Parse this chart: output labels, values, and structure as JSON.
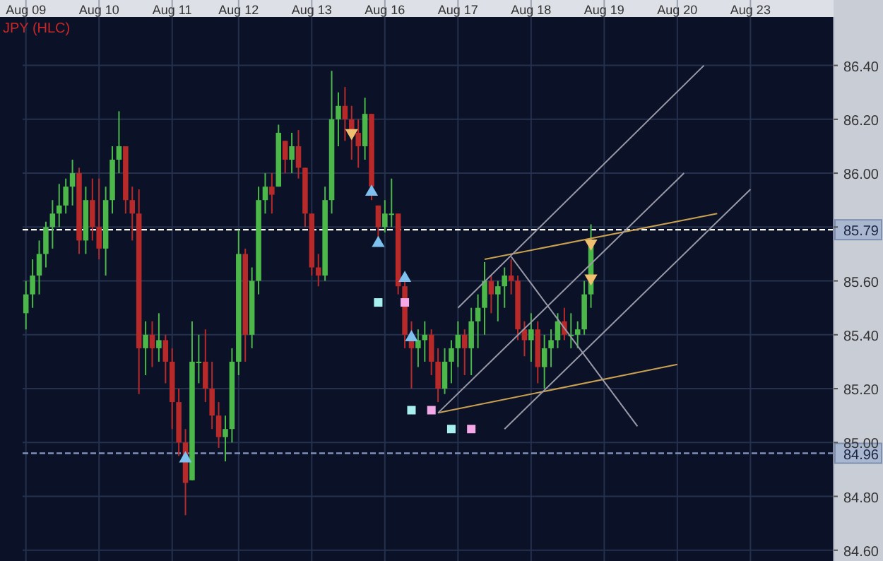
{
  "chart_data": {
    "type": "candlestick",
    "title": "JPY (HLC)",
    "categories": [
      "Aug 09",
      null,
      null,
      null,
      null,
      null,
      null,
      null,
      null,
      null,
      null,
      "Aug 10",
      null,
      null,
      null,
      null,
      null,
      null,
      null,
      null,
      null,
      null,
      "Aug 11",
      null,
      null,
      null,
      null,
      null,
      null,
      null,
      null,
      null,
      "Aug 12",
      null,
      null,
      null,
      null,
      null,
      null,
      null,
      null,
      null,
      null,
      "Aug 13",
      null,
      null,
      null,
      null,
      null,
      null,
      null,
      null,
      null,
      null,
      "Aug 16",
      null,
      null,
      null,
      null,
      null,
      null,
      null,
      null,
      null,
      null,
      "Aug 17",
      null,
      null,
      null,
      null,
      null,
      null,
      null,
      null,
      null,
      null,
      "Aug 18",
      null,
      null,
      null,
      null,
      null,
      null,
      null,
      null,
      null,
      null,
      "Aug 19",
      null,
      null,
      null,
      null,
      null,
      null,
      null,
      null,
      null,
      null,
      "Aug 20",
      null,
      null,
      null,
      null,
      null,
      null,
      null,
      null,
      null,
      null,
      "Aug 23",
      null,
      null,
      null,
      null,
      null,
      null,
      null,
      null,
      null,
      null,
      null,
      null
    ],
    "ohlc": [
      [
        85.48,
        85.6,
        85.42,
        85.55
      ],
      [
        85.55,
        85.68,
        85.5,
        85.62
      ],
      [
        85.62,
        85.75,
        85.55,
        85.7
      ],
      [
        85.7,
        85.82,
        85.65,
        85.8
      ],
      [
        85.8,
        85.9,
        85.72,
        85.85
      ],
      [
        85.85,
        85.96,
        85.8,
        85.88
      ],
      [
        85.88,
        85.98,
        85.85,
        85.95
      ],
      [
        85.95,
        86.05,
        85.88,
        86.0
      ],
      [
        86.0,
        86.02,
        85.7,
        85.75
      ],
      [
        85.75,
        85.95,
        85.7,
        85.9
      ],
      [
        85.9,
        85.98,
        85.75,
        85.8
      ],
      [
        85.8,
        85.98,
        85.68,
        85.72
      ],
      [
        85.72,
        85.95,
        85.62,
        85.9
      ],
      [
        85.9,
        86.1,
        85.85,
        86.05
      ],
      [
        86.05,
        86.23,
        86.0,
        86.1
      ],
      [
        86.1,
        86.1,
        85.85,
        85.9
      ],
      [
        85.9,
        85.95,
        85.75,
        85.85
      ],
      [
        85.85,
        85.94,
        85.18,
        85.35
      ],
      [
        85.35,
        85.45,
        85.25,
        85.4
      ],
      [
        85.4,
        85.45,
        85.28,
        85.35
      ],
      [
        85.35,
        85.48,
        85.3,
        85.38
      ],
      [
        85.38,
        85.4,
        85.22,
        85.3
      ],
      [
        85.3,
        85.35,
        85.05,
        85.15
      ],
      [
        85.15,
        85.2,
        84.95,
        85.0
      ],
      [
        85.0,
        85.05,
        84.73,
        84.85
      ],
      [
        84.86,
        85.45,
        84.86,
        85.3
      ],
      [
        85.3,
        85.4,
        85.22,
        85.3
      ],
      [
        85.3,
        85.42,
        85.15,
        85.2
      ],
      [
        85.2,
        85.3,
        85.05,
        85.1
      ],
      [
        85.1,
        85.15,
        84.98,
        85.02
      ],
      [
        85.02,
        85.1,
        84.93,
        85.05
      ],
      [
        85.05,
        85.35,
        85.0,
        85.3
      ],
      [
        85.3,
        85.79,
        85.25,
        85.7
      ],
      [
        85.7,
        85.72,
        85.3,
        85.4
      ],
      [
        85.4,
        85.65,
        85.35,
        85.6
      ],
      [
        85.6,
        85.95,
        85.55,
        85.9
      ],
      [
        85.9,
        86.0,
        85.85,
        85.95
      ],
      [
        85.95,
        86.0,
        85.85,
        85.92
      ],
      [
        85.95,
        86.18,
        85.95,
        86.15
      ],
      [
        86.12,
        86.12,
        86.0,
        86.05
      ],
      [
        86.05,
        86.15,
        86.0,
        86.1
      ],
      [
        86.1,
        86.16,
        85.98,
        86.02
      ],
      [
        86.02,
        86.02,
        85.8,
        85.85
      ],
      [
        85.85,
        85.85,
        85.62,
        85.65
      ],
      [
        85.65,
        85.7,
        85.58,
        85.62
      ],
      [
        85.62,
        85.95,
        85.6,
        85.9
      ],
      [
        85.9,
        86.38,
        85.85,
        86.2
      ],
      [
        86.2,
        86.3,
        86.1,
        86.25
      ],
      [
        86.25,
        86.32,
        86.12,
        86.2
      ],
      [
        86.2,
        86.25,
        86.05,
        86.15
      ],
      [
        86.15,
        86.2,
        86.02,
        86.1
      ],
      [
        86.1,
        86.28,
        86.05,
        86.22
      ],
      [
        86.22,
        86.22,
        85.9,
        85.95
      ],
      [
        85.88,
        85.88,
        85.75,
        85.8
      ],
      [
        85.8,
        85.9,
        85.78,
        85.85
      ],
      [
        85.85,
        85.98,
        85.8,
        85.85
      ],
      [
        85.85,
        85.85,
        85.55,
        85.58
      ],
      [
        85.58,
        85.6,
        85.35,
        85.4
      ],
      [
        85.4,
        85.45,
        85.2,
        85.35
      ],
      [
        85.35,
        85.42,
        85.28,
        85.38
      ],
      [
        85.38,
        85.45,
        85.3,
        85.4
      ],
      [
        85.4,
        85.42,
        85.25,
        85.3
      ],
      [
        85.3,
        85.35,
        85.15,
        85.2
      ],
      [
        85.2,
        85.35,
        85.18,
        85.3
      ],
      [
        85.3,
        85.38,
        85.22,
        85.35
      ],
      [
        85.35,
        85.45,
        85.28,
        85.4
      ],
      [
        85.4,
        85.42,
        85.25,
        85.35
      ],
      [
        85.35,
        85.5,
        85.25,
        85.45
      ],
      [
        85.45,
        85.55,
        85.35,
        85.5
      ],
      [
        85.5,
        85.67,
        85.4,
        85.6
      ],
      [
        85.6,
        85.62,
        85.48,
        85.55
      ],
      [
        85.55,
        85.6,
        85.45,
        85.58
      ],
      [
        85.58,
        85.65,
        85.5,
        85.62
      ],
      [
        85.62,
        85.68,
        85.55,
        85.6
      ],
      [
        85.6,
        85.62,
        85.38,
        85.42
      ],
      [
        85.42,
        85.45,
        85.32,
        85.38
      ],
      [
        85.38,
        85.48,
        85.3,
        85.42
      ],
      [
        85.42,
        85.45,
        85.22,
        85.28
      ],
      [
        85.28,
        85.4,
        85.2,
        85.35
      ],
      [
        85.35,
        85.42,
        85.28,
        85.38
      ],
      [
        85.38,
        85.48,
        85.35,
        85.45
      ],
      [
        85.45,
        85.5,
        85.38,
        85.4
      ],
      [
        85.4,
        85.48,
        85.35,
        85.4
      ],
      [
        85.4,
        85.45,
        85.35,
        85.42
      ],
      [
        85.42,
        85.6,
        85.4,
        85.55
      ],
      [
        85.55,
        85.81,
        85.5,
        85.75
      ],
      null,
      null,
      null,
      null,
      null,
      null,
      null,
      null,
      null,
      null,
      null,
      null,
      null,
      null,
      null,
      null,
      null,
      null,
      null,
      null,
      null,
      null,
      null,
      null,
      null,
      null,
      null,
      null,
      null,
      null,
      null,
      null,
      null,
      null,
      null,
      null
    ],
    "colors": [
      "#4cb84a",
      "#4cb84a",
      "#4cb84a",
      "#4cb84a",
      "#4cb84a",
      "#4cb84a",
      "#4cb84a",
      "#4cb84a",
      "#b82a2a",
      "#4cb84a",
      "#b82a2a",
      "#b82a2a",
      "#4cb84a",
      "#4cb84a",
      "#4cb84a",
      "#b82a2a",
      "#b82a2a",
      "#b82a2a",
      "#4cb84a",
      "#b82a2a",
      "#4cb84a",
      "#b82a2a",
      "#b82a2a",
      "#b82a2a",
      "#b82a2a",
      "#4cb84a",
      "#4cb84a",
      "#b82a2a",
      "#b82a2a",
      "#b82a2a",
      "#4cb84a",
      "#4cb84a",
      "#4cb84a",
      "#b82a2a",
      "#4cb84a",
      "#4cb84a",
      "#4cb84a",
      "#b82a2a",
      "#4cb84a",
      "#b82a2a",
      "#4cb84a",
      "#b82a2a",
      "#b82a2a",
      "#b82a2a",
      "#b82a2a",
      "#4cb84a",
      "#4cb84a",
      "#4cb84a",
      "#b82a2a",
      "#b82a2a",
      "#b82a2a",
      "#4cb84a",
      "#b82a2a",
      "#b82a2a",
      "#4cb84a",
      "#4cb84a",
      "#b82a2a",
      "#b82a2a",
      "#b82a2a",
      "#4cb84a",
      "#4cb84a",
      "#b82a2a",
      "#b82a2a",
      "#4cb84a",
      "#4cb84a",
      "#4cb84a",
      "#b82a2a",
      "#4cb84a",
      "#4cb84a",
      "#4cb84a",
      "#b82a2a",
      "#4cb84a",
      "#4cb84a",
      "#b82a2a",
      "#b82a2a",
      "#b82a2a",
      "#4cb84a",
      "#b82a2a",
      "#4cb84a",
      "#4cb84a",
      "#4cb84a",
      "#b82a2a",
      "#4cb84a",
      "#4cb84a",
      "#4cb84a",
      "#4cb84a",
      null,
      null,
      null,
      null,
      null,
      null,
      null,
      null,
      null,
      null,
      null,
      null,
      null,
      null,
      null,
      null,
      null,
      null,
      null,
      null,
      null,
      null,
      null,
      null,
      null,
      null,
      null,
      null,
      null,
      null,
      null,
      null,
      null,
      null,
      null,
      null
    ],
    "series": [
      {
        "type": "scatter",
        "marker": "triangle",
        "color": "#7ec0ee",
        "values": [
          null,
          null,
          null,
          null,
          null,
          null,
          null,
          null,
          null,
          null,
          null,
          null,
          null,
          null,
          null,
          null,
          null,
          null,
          null,
          null,
          null,
          null,
          null,
          null,
          84.94,
          null,
          null,
          null,
          null,
          null,
          null,
          null,
          null,
          null,
          null,
          null,
          null,
          null,
          null,
          null,
          null,
          null,
          null,
          null,
          null,
          null,
          null,
          null,
          null,
          null,
          null,
          null,
          85.93,
          85.74,
          null,
          null,
          null,
          85.61,
          85.39,
          null,
          null,
          null,
          null,
          null,
          null,
          null,
          null,
          null,
          null,
          null,
          null,
          null,
          null,
          null,
          null,
          null,
          null,
          null,
          null,
          null,
          null,
          null,
          null,
          null,
          null,
          null,
          null,
          null,
          null,
          null,
          null,
          null,
          null,
          null,
          null,
          null,
          null,
          null,
          null,
          null,
          null,
          null,
          null,
          null,
          null,
          null,
          null,
          null,
          null,
          null,
          null,
          null,
          null,
          null,
          null,
          null,
          null,
          null,
          null,
          null,
          null,
          null
        ]
      },
      {
        "type": "scatter",
        "marker": "triangle-down",
        "color": "#f0c070",
        "values": [
          null,
          null,
          null,
          null,
          null,
          null,
          null,
          null,
          null,
          null,
          null,
          null,
          null,
          null,
          null,
          null,
          null,
          null,
          null,
          null,
          null,
          null,
          null,
          null,
          null,
          null,
          null,
          null,
          null,
          null,
          null,
          null,
          null,
          null,
          null,
          null,
          null,
          null,
          null,
          null,
          null,
          null,
          null,
          null,
          null,
          null,
          null,
          null,
          null,
          86.15,
          null,
          null,
          null,
          null,
          null,
          null,
          null,
          null,
          null,
          null,
          null,
          null,
          null,
          null,
          null,
          null,
          null,
          null,
          null,
          null,
          null,
          null,
          null,
          null,
          null,
          null,
          null,
          null,
          null,
          null,
          null,
          null,
          null,
          null,
          null,
          85.74,
          null,
          null,
          null,
          null,
          null,
          null,
          null,
          null,
          null,
          null,
          null,
          null,
          null,
          null,
          null,
          null,
          null,
          null,
          null,
          null,
          null,
          null,
          null,
          null,
          null,
          null,
          null,
          null,
          null,
          null,
          null,
          null,
          null,
          null,
          null,
          null
        ]
      },
      {
        "type": "scatter",
        "marker": "triangle-down",
        "color": "#f0c070",
        "values": [
          null,
          null,
          null,
          null,
          null,
          null,
          null,
          null,
          null,
          null,
          null,
          null,
          null,
          null,
          null,
          null,
          null,
          null,
          null,
          null,
          null,
          null,
          null,
          null,
          null,
          null,
          null,
          null,
          null,
          null,
          null,
          null,
          null,
          null,
          null,
          null,
          null,
          null,
          null,
          null,
          null,
          null,
          null,
          null,
          null,
          null,
          null,
          null,
          null,
          null,
          null,
          null,
          null,
          null,
          null,
          null,
          null,
          null,
          null,
          null,
          null,
          null,
          null,
          null,
          null,
          null,
          null,
          null,
          null,
          null,
          null,
          null,
          null,
          null,
          null,
          null,
          null,
          null,
          null,
          null,
          null,
          null,
          null,
          null,
          null,
          85.61,
          null,
          null,
          null,
          null,
          null,
          null,
          null,
          null,
          null,
          null,
          null,
          null,
          null,
          null,
          null,
          null,
          null,
          null,
          null,
          null,
          null,
          null,
          null,
          null,
          null,
          null,
          null,
          null,
          null,
          null,
          null,
          null,
          null,
          null,
          null,
          null
        ]
      },
      {
        "type": "scatter",
        "marker": "square",
        "color": "#a8f0f0",
        "values": [
          null,
          null,
          null,
          null,
          null,
          null,
          null,
          null,
          null,
          null,
          null,
          null,
          null,
          null,
          null,
          null,
          null,
          null,
          null,
          null,
          null,
          null,
          null,
          null,
          null,
          null,
          null,
          null,
          null,
          null,
          null,
          null,
          null,
          null,
          null,
          null,
          null,
          null,
          null,
          null,
          null,
          null,
          null,
          null,
          null,
          null,
          null,
          null,
          null,
          null,
          null,
          null,
          null,
          85.52,
          null,
          null,
          null,
          null,
          85.12,
          null,
          null,
          null,
          null,
          null,
          85.05,
          null,
          null,
          null,
          null,
          null,
          null,
          null,
          null,
          null,
          null,
          null,
          null,
          null,
          null,
          null,
          null,
          null,
          null,
          null,
          null,
          null,
          null,
          null,
          null,
          null,
          null,
          null,
          null,
          null,
          null,
          null,
          null,
          null,
          null,
          null,
          null,
          null,
          null,
          null,
          null,
          null,
          null,
          null,
          null,
          null,
          null,
          null,
          null,
          null,
          null,
          null,
          null,
          null,
          null,
          null,
          null,
          null
        ]
      },
      {
        "type": "scatter",
        "marker": "square",
        "color": "#f4a8e8",
        "values": [
          null,
          null,
          null,
          null,
          null,
          null,
          null,
          null,
          null,
          null,
          null,
          null,
          null,
          null,
          null,
          null,
          null,
          null,
          null,
          null,
          null,
          null,
          null,
          null,
          null,
          null,
          null,
          null,
          null,
          null,
          null,
          null,
          null,
          null,
          null,
          null,
          null,
          null,
          null,
          null,
          null,
          null,
          null,
          null,
          null,
          null,
          null,
          null,
          null,
          null,
          null,
          null,
          null,
          null,
          null,
          null,
          null,
          85.52,
          null,
          null,
          null,
          85.12,
          null,
          null,
          null,
          null,
          null,
          85.05,
          null,
          null,
          null,
          null,
          null,
          null,
          null,
          null,
          null,
          null,
          null,
          null,
          null,
          null,
          null,
          null,
          null,
          null,
          null,
          null,
          null,
          null,
          null,
          null,
          null,
          null,
          null,
          null,
          null,
          null,
          null,
          null,
          null,
          null,
          null,
          null,
          null,
          null,
          null,
          null,
          null,
          null,
          null,
          null,
          null,
          null,
          null,
          null,
          null,
          null,
          null,
          null,
          null,
          null
        ]
      },
      {
        "type": "line",
        "color": "#c8a050",
        "values": [
          null,
          null,
          null,
          null,
          null,
          null,
          null,
          null,
          null,
          null,
          null,
          null,
          null,
          null,
          null,
          null,
          null,
          null,
          null,
          null,
          null,
          null,
          null,
          null,
          null,
          null,
          null,
          null,
          null,
          null,
          null,
          null,
          null,
          null,
          null,
          null,
          null,
          null,
          null,
          null,
          null,
          null,
          null,
          null,
          null,
          null,
          null,
          null,
          null,
          null,
          null,
          null,
          null,
          null,
          null,
          null,
          null,
          null,
          null,
          null,
          null,
          null,
          null,
          null,
          null,
          null,
          null,
          null,
          null,
          85.68,
          null,
          null,
          null,
          null,
          null,
          null,
          null,
          null,
          null,
          null,
          null,
          null,
          null,
          null,
          null,
          null,
          null,
          null,
          null,
          null,
          null,
          null,
          null,
          null,
          null,
          null,
          null,
          null,
          null,
          null,
          null,
          null,
          null,
          null,
          85.85,
          null,
          null,
          null,
          null,
          null,
          null,
          null,
          null,
          null,
          null,
          null,
          null,
          null,
          null,
          null,
          null,
          null
        ]
      },
      {
        "type": "line",
        "color": "#c8a050",
        "values": [
          null,
          null,
          null,
          null,
          null,
          null,
          null,
          null,
          null,
          null,
          null,
          null,
          null,
          null,
          null,
          null,
          null,
          null,
          null,
          null,
          null,
          null,
          null,
          null,
          null,
          null,
          null,
          null,
          null,
          null,
          null,
          null,
          null,
          null,
          null,
          null,
          null,
          null,
          null,
          null,
          null,
          null,
          null,
          null,
          null,
          null,
          null,
          null,
          null,
          null,
          null,
          null,
          null,
          null,
          null,
          null,
          null,
          null,
          null,
          null,
          null,
          null,
          85.11,
          null,
          null,
          null,
          null,
          null,
          null,
          null,
          null,
          null,
          null,
          null,
          null,
          null,
          null,
          null,
          null,
          null,
          null,
          null,
          null,
          null,
          null,
          null,
          null,
          null,
          null,
          null,
          null,
          null,
          null,
          null,
          null,
          null,
          null,
          null,
          85.29,
          null,
          null,
          null,
          null,
          null,
          null,
          null,
          null,
          null,
          null,
          null,
          null,
          null,
          null,
          null,
          null,
          null,
          null,
          null,
          null,
          null,
          null,
          null
        ]
      },
      {
        "type": "line",
        "color": "#9a9aa8",
        "values": [
          null,
          null,
          null,
          null,
          null,
          null,
          null,
          null,
          null,
          null,
          null,
          null,
          null,
          null,
          null,
          null,
          null,
          null,
          null,
          null,
          null,
          null,
          null,
          null,
          null,
          null,
          null,
          null,
          null,
          null,
          null,
          null,
          null,
          null,
          null,
          null,
          null,
          null,
          null,
          null,
          null,
          null,
          null,
          null,
          null,
          null,
          null,
          null,
          null,
          null,
          null,
          null,
          null,
          null,
          null,
          null,
          null,
          null,
          null,
          null,
          null,
          null,
          null,
          null,
          null,
          85.5,
          null,
          null,
          null,
          null,
          null,
          null,
          null,
          null,
          null,
          null,
          null,
          null,
          null,
          null,
          null,
          null,
          null,
          null,
          null,
          null,
          null,
          null,
          null,
          null,
          null,
          null,
          null,
          null,
          null,
          null,
          null,
          null,
          null,
          null,
          null,
          null,
          86.4,
          null,
          null,
          null,
          null,
          null,
          null,
          null,
          null,
          null,
          null,
          null,
          null,
          null,
          null,
          null,
          null,
          null,
          null,
          null
        ]
      },
      {
        "type": "line",
        "color": "#9a9aa8",
        "values": [
          null,
          null,
          null,
          null,
          null,
          null,
          null,
          null,
          null,
          null,
          null,
          null,
          null,
          null,
          null,
          null,
          null,
          null,
          null,
          null,
          null,
          null,
          null,
          null,
          null,
          null,
          null,
          null,
          null,
          null,
          null,
          null,
          null,
          null,
          null,
          null,
          null,
          null,
          null,
          null,
          null,
          null,
          null,
          null,
          null,
          null,
          null,
          null,
          null,
          null,
          null,
          null,
          null,
          null,
          null,
          null,
          null,
          null,
          null,
          null,
          null,
          null,
          85.11,
          null,
          null,
          null,
          null,
          null,
          null,
          null,
          null,
          null,
          null,
          null,
          null,
          null,
          null,
          null,
          null,
          null,
          null,
          null,
          null,
          null,
          null,
          null,
          null,
          null,
          null,
          null,
          null,
          null,
          null,
          null,
          null,
          null,
          null,
          null,
          null,
          86.0,
          null,
          null,
          null,
          null,
          null,
          null,
          null,
          null,
          null,
          null,
          null,
          null,
          null,
          null,
          null,
          null,
          null,
          null,
          null,
          null,
          null,
          null
        ]
      },
      {
        "type": "line",
        "color": "#9a9aa8",
        "values": [
          null,
          null,
          null,
          null,
          null,
          null,
          null,
          null,
          null,
          null,
          null,
          null,
          null,
          null,
          null,
          null,
          null,
          null,
          null,
          null,
          null,
          null,
          null,
          null,
          null,
          null,
          null,
          null,
          null,
          null,
          null,
          null,
          null,
          null,
          null,
          null,
          null,
          null,
          null,
          null,
          null,
          null,
          null,
          null,
          null,
          null,
          null,
          null,
          null,
          null,
          null,
          null,
          null,
          null,
          null,
          null,
          null,
          null,
          null,
          null,
          null,
          null,
          null,
          null,
          null,
          null,
          null,
          null,
          null,
          null,
          null,
          null,
          85.05,
          null,
          null,
          null,
          null,
          null,
          null,
          null,
          null,
          null,
          null,
          null,
          null,
          null,
          null,
          null,
          null,
          null,
          null,
          null,
          null,
          null,
          null,
          null,
          null,
          null,
          null,
          null,
          null,
          null,
          null,
          null,
          null,
          null,
          null,
          null,
          null,
          85.94,
          null,
          null,
          null,
          null,
          null,
          null,
          null,
          null,
          null,
          null,
          null,
          null
        ]
      },
      {
        "type": "line",
        "color": "#9a9aa8",
        "values": [
          null,
          null,
          null,
          null,
          null,
          null,
          null,
          null,
          null,
          null,
          null,
          null,
          null,
          null,
          null,
          null,
          null,
          null,
          null,
          null,
          null,
          null,
          null,
          null,
          null,
          null,
          null,
          null,
          null,
          null,
          null,
          null,
          null,
          null,
          null,
          null,
          null,
          null,
          null,
          null,
          null,
          null,
          null,
          null,
          null,
          null,
          null,
          null,
          null,
          null,
          null,
          null,
          null,
          null,
          null,
          null,
          null,
          null,
          null,
          null,
          null,
          null,
          null,
          null,
          null,
          null,
          null,
          null,
          null,
          null,
          null,
          null,
          null,
          85.69,
          null,
          null,
          null,
          null,
          null,
          null,
          null,
          null,
          null,
          null,
          null,
          null,
          null,
          null,
          null,
          null,
          null,
          null,
          85.06,
          null,
          null,
          null,
          null,
          null,
          null,
          null,
          null,
          null,
          null,
          null,
          null,
          null,
          null,
          null,
          null,
          null,
          null,
          null,
          null,
          null,
          null,
          null,
          null,
          null,
          null,
          null,
          null,
          null
        ]
      }
    ],
    "ylim": [
      84.56,
      86.58
    ],
    "yticks": [
      {
        "value": 84.6,
        "label": "84.60"
      },
      {
        "value": 84.8,
        "label": "84.80"
      },
      {
        "value": 85.0,
        "label": "85.00"
      },
      {
        "value": 85.2,
        "label": "85.20"
      },
      {
        "value": 85.4,
        "label": "85.40"
      },
      {
        "value": 85.6,
        "label": "85.60"
      },
      {
        "value": 85.8,
        "label": null
      },
      {
        "value": 86.0,
        "label": "86.00"
      },
      {
        "value": 86.2,
        "label": "86.20"
      },
      {
        "value": 86.4,
        "label": "86.40"
      }
    ],
    "ref_lines": [
      {
        "axis": "y",
        "value": 85.79,
        "label": "85.79",
        "color": "#ffffff",
        "line_style": "dashed"
      },
      {
        "axis": "y",
        "value": 84.96,
        "label": "84.96",
        "color": "#8090b8",
        "line_style": "dashed"
      }
    ],
    "grid": true
  }
}
